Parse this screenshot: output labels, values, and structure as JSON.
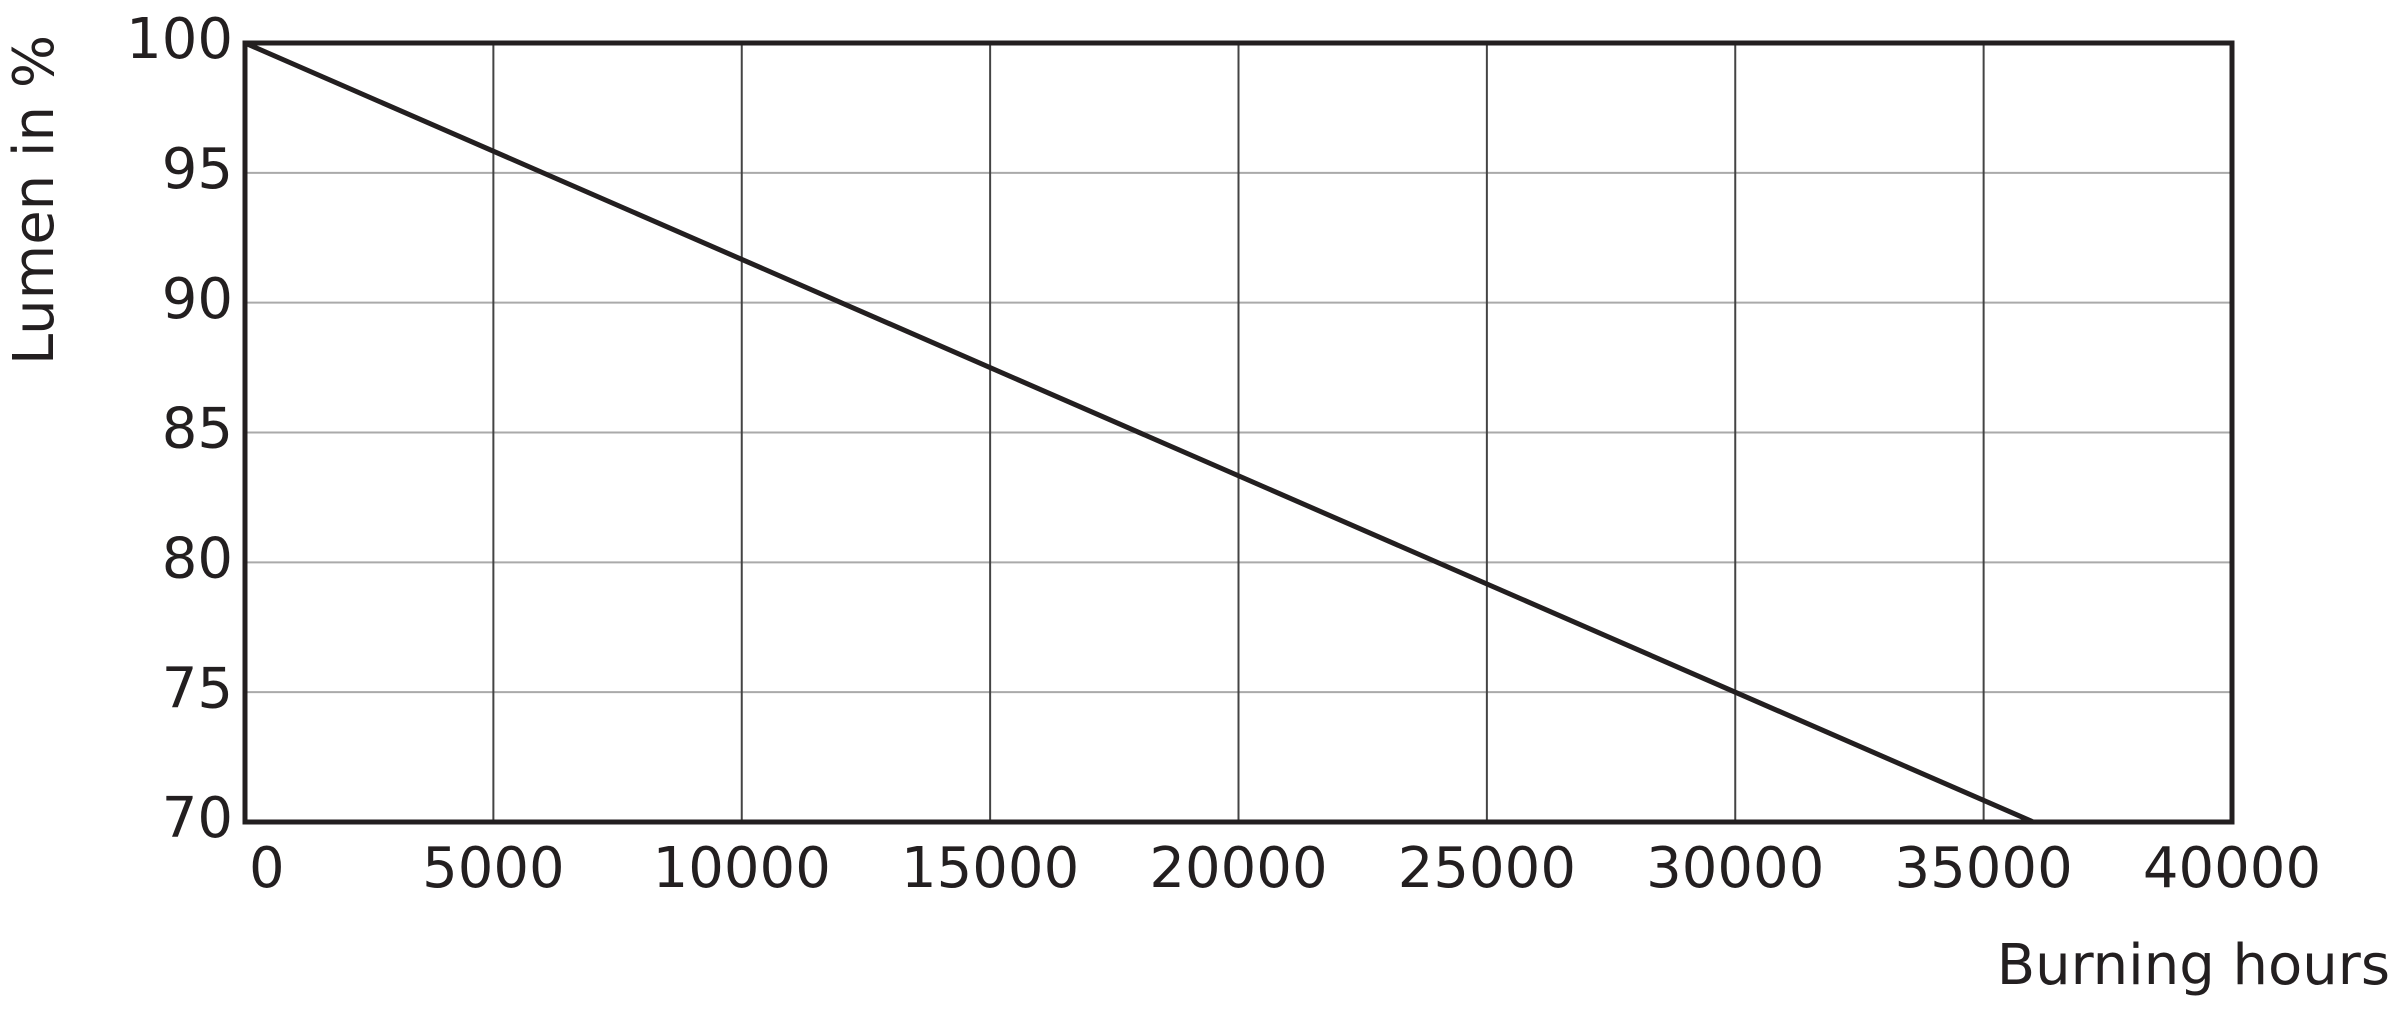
{
  "chart_data": {
    "type": "line",
    "x_label": "Burning hours",
    "y_label": "Lumen in %",
    "x": [
      0,
      36000
    ],
    "series": [
      {
        "color": "#231f20",
        "values": [
          100,
          70
        ]
      }
    ],
    "xlim": [
      0,
      40000
    ],
    "xticks": [
      0,
      5000,
      10000,
      15000,
      20000,
      25000,
      30000,
      35000,
      40000
    ],
    "ylim": [
      70,
      100
    ],
    "yticks": [
      70,
      75,
      80,
      85,
      90,
      95,
      100
    ],
    "grid": true
  }
}
